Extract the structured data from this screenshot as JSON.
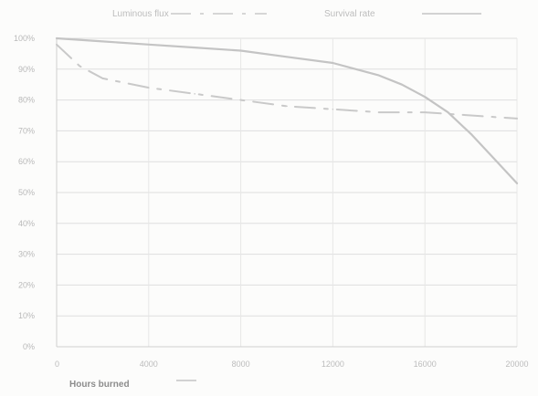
{
  "chart_data": {
    "type": "line",
    "xlabel": "Hours burned",
    "ylabel": "",
    "title": "",
    "xlim": [
      0,
      20000
    ],
    "ylim": [
      0,
      100
    ],
    "x_ticks": [
      "0",
      "4000",
      "8000",
      "12000",
      "16000",
      "20000"
    ],
    "y_ticks": [
      "0%",
      "10%",
      "20%",
      "30%",
      "40%",
      "50%",
      "60%",
      "70%",
      "80%",
      "90%",
      "100%"
    ],
    "grid": true,
    "legend_position": "top",
    "series": [
      {
        "name": "Luminous flux",
        "style": "dashed",
        "color": "#c9c9c9",
        "x": [
          0,
          1000,
          2000,
          4000,
          6000,
          8000,
          10000,
          12000,
          14000,
          16000,
          18000,
          20000
        ],
        "y": [
          98,
          91,
          87,
          84,
          82,
          80,
          78,
          77,
          76,
          76,
          75,
          74
        ]
      },
      {
        "name": "Survival rate",
        "style": "solid",
        "color": "#c4c4c4",
        "x": [
          0,
          2000,
          4000,
          6000,
          8000,
          10000,
          12000,
          13000,
          14000,
          15000,
          16000,
          17000,
          18000,
          19000,
          20000
        ],
        "y": [
          100,
          99,
          98,
          97,
          96,
          94,
          92,
          90,
          88,
          85,
          81,
          76,
          69,
          61,
          53
        ]
      }
    ]
  }
}
